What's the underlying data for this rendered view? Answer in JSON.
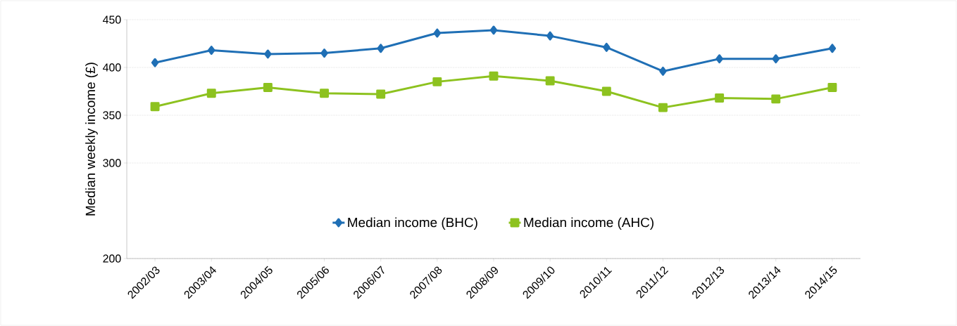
{
  "chart_data": {
    "type": "line",
    "ylabel": "Median weekly income (£)",
    "categories": [
      "2002/03",
      "2003/04",
      "2004/05",
      "2005/06",
      "2006/07",
      "2007/08",
      "2008/09",
      "2009/10",
      "2010/11",
      "2011/12",
      "2012/13",
      "2013/14",
      "2014/15"
    ],
    "series": [
      {
        "name": "Median income (BHC)",
        "color": "#1f6fb5",
        "marker": "diamond",
        "values": [
          405,
          418,
          414,
          415,
          420,
          436,
          439,
          433,
          421,
          396,
          409,
          409,
          420
        ]
      },
      {
        "name": "Median income (AHC)",
        "color": "#8dc21f",
        "marker": "square",
        "values": [
          359,
          373,
          379,
          373,
          372,
          385,
          391,
          386,
          375,
          358,
          368,
          367,
          379
        ]
      }
    ],
    "ylim": [
      200,
      450
    ],
    "yticks": [
      200,
      300,
      350,
      400,
      450
    ],
    "grid": "y",
    "legend": "bottom",
    "line_style": "solid"
  }
}
